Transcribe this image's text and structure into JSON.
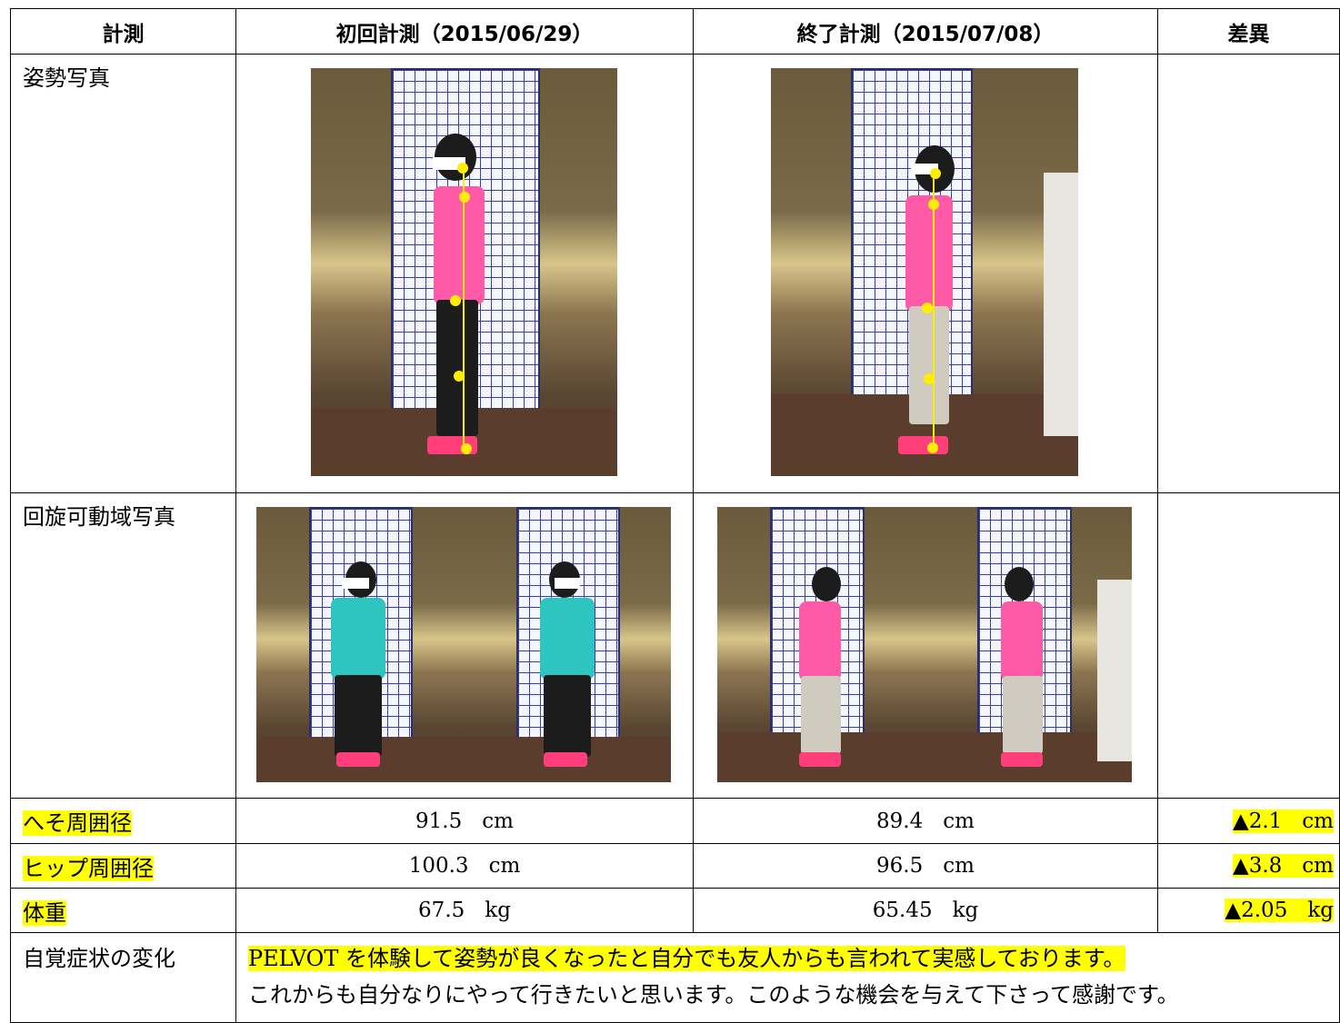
{
  "header": {
    "col1": "計測",
    "col2": "初回計測（2015/06/29）",
    "col3": "終了計測（2015/07/08）",
    "col4": "差異"
  },
  "rows": {
    "posture_label": "姿勢写真",
    "rotation_label": "回旋可動域写真",
    "navel": {
      "label": "へそ周囲径",
      "first": "91.5",
      "first_unit": "cm",
      "last": "89.4",
      "last_unit": "cm",
      "diff": "▲2.1",
      "diff_unit": "cm"
    },
    "hip": {
      "label": "ヒップ周囲径",
      "first": "100.3",
      "first_unit": "cm",
      "last": "96.5",
      "last_unit": "cm",
      "diff": "▲3.8",
      "diff_unit": "cm"
    },
    "weight": {
      "label": "体重",
      "first": "67.5",
      "first_unit": "kg",
      "last": "65.45",
      "last_unit": "kg",
      "diff": "▲2.05",
      "diff_unit": "kg"
    },
    "symptoms": {
      "label": "自覚症状の変化",
      "line1": "PELVOT を体験して姿勢が良くなったと自分でも友人からも言われて実感しております。",
      "line2": "これからも自分なりにやって行きたいと思います。このような機会を与えて下さって感謝です。"
    }
  },
  "colors": {
    "highlight": "#ffff00",
    "shirt_first": "#ff5aa8",
    "shirt_rotation_first": "#2ec4c0",
    "shoe": "#ff3e7a"
  }
}
